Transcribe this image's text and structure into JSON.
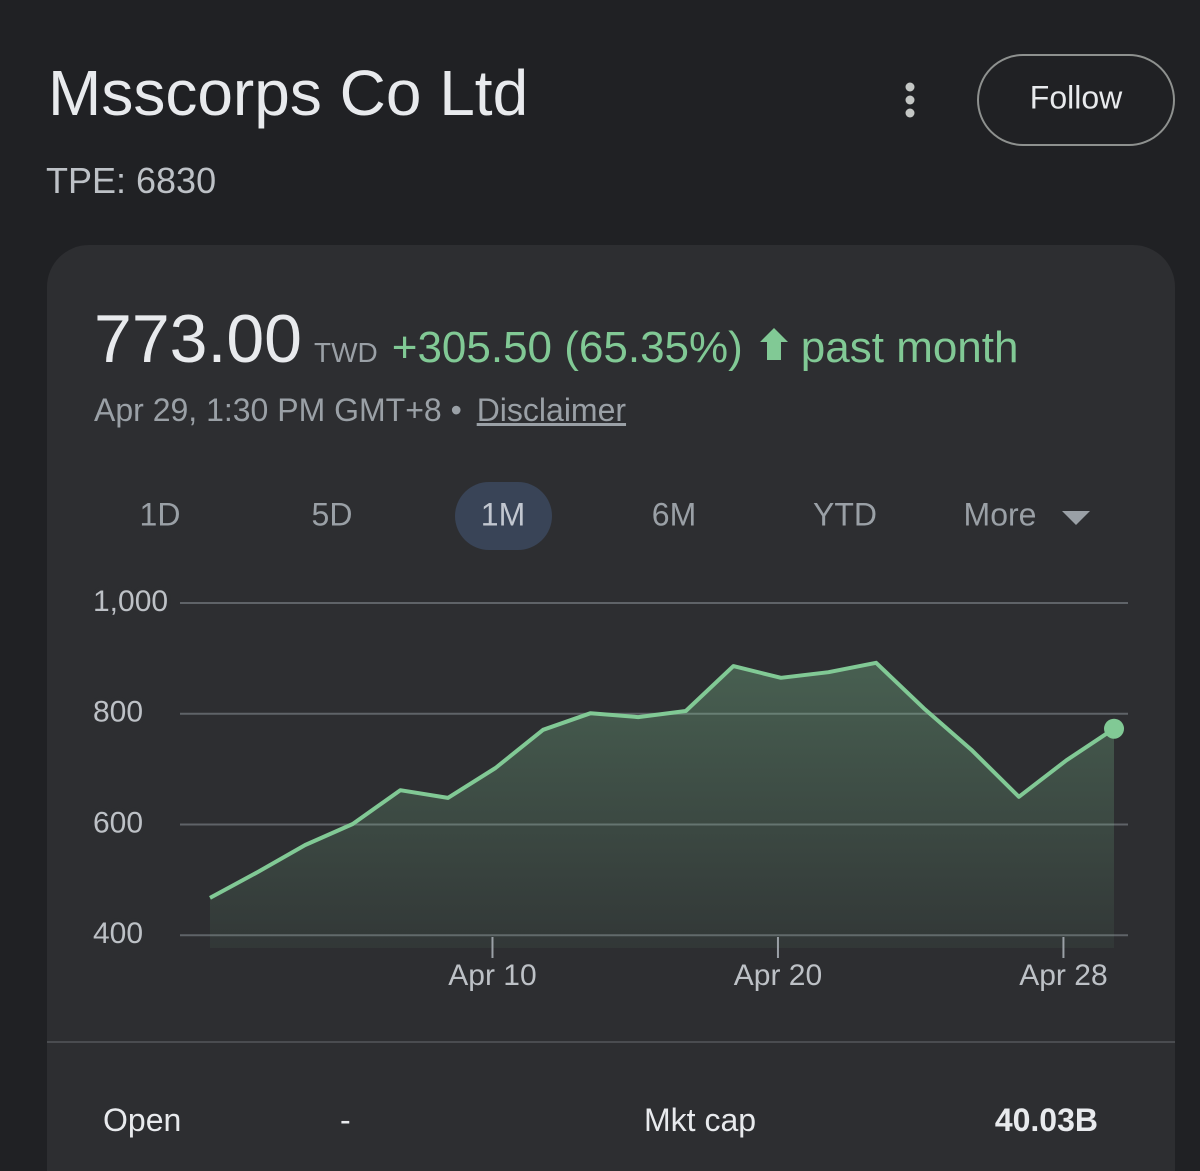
{
  "header": {
    "title": "Msscorps Co Ltd",
    "ticker": "TPE: 6830",
    "follow": "Follow"
  },
  "quote": {
    "price": "773.00",
    "currency": "TWD",
    "change": "+305.50 (65.35%)",
    "period": "past month",
    "timestamp": "Apr 29, 1:30 PM GMT+8 •",
    "disclaimer": "Disclaimer"
  },
  "tabs": [
    "1D",
    "5D",
    "1M",
    "6M",
    "YTD",
    "More"
  ],
  "chart_data": {
    "type": "area",
    "color": "#81c995",
    "categories": [
      null,
      null,
      null,
      null,
      null,
      null,
      "Apr 10",
      null,
      null,
      null,
      null,
      null,
      "Apr 20",
      null,
      null,
      null,
      null,
      null,
      "Apr 28",
      null
    ],
    "values": [
      467.5,
      514,
      563,
      601,
      662,
      648,
      702,
      771,
      801,
      794,
      805,
      886,
      865,
      875,
      892,
      810,
      735,
      650,
      716,
      773
    ],
    "ylim": [
      377,
      1000
    ],
    "yticks": [
      400,
      600,
      800,
      {
        "value": 1000,
        "label": "1,000"
      }
    ],
    "grid": true
  },
  "stats": {
    "rows": [
      [
        "Open",
        "-",
        "Mkt cap",
        "40.03B"
      ]
    ]
  }
}
